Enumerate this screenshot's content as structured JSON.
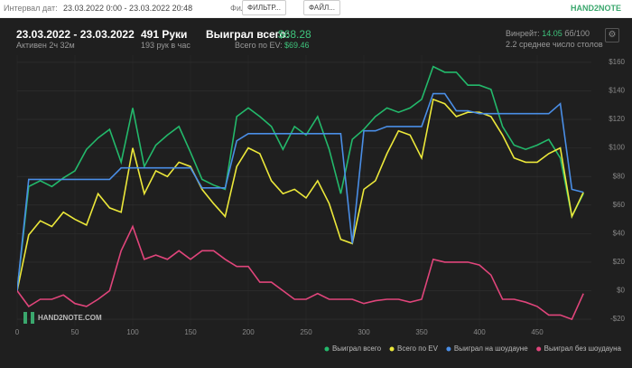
{
  "toolbar": {
    "date_label": "Интервал дат:",
    "date_range": "23.03.2022 0:00 - 23.03.2022 20:48",
    "filters_label": "Фильтры:",
    "filter_button": "ФИЛЬТР...",
    "file_button": "ФАЙЛ...",
    "logo": "HAND2NOTE"
  },
  "stats": {
    "period": "23.03.2022 - 23.03.2022",
    "active": "Активен 2ч 32м",
    "hands": "491 Руки",
    "hands_per_hour": "193 рук в час",
    "won_label": "Выиграл всего:",
    "won_value": "$68.28",
    "ev_label": "Всего по EV:",
    "ev_value": "$69.46",
    "winrate_label": "Винрейт:",
    "winrate_value": "14.05",
    "winrate_unit": "бб/100",
    "tables": "2.2 среднее число столов"
  },
  "watermark": "HAND2NOTE.COM",
  "chart_data": {
    "type": "line",
    "x": [
      0,
      10,
      20,
      30,
      40,
      50,
      60,
      70,
      80,
      90,
      100,
      110,
      120,
      130,
      140,
      150,
      160,
      170,
      180,
      190,
      200,
      210,
      220,
      230,
      240,
      250,
      260,
      270,
      280,
      290,
      300,
      310,
      320,
      330,
      340,
      350,
      360,
      370,
      380,
      390,
      400,
      410,
      420,
      430,
      440,
      450,
      460,
      470,
      480,
      490
    ],
    "xlim": [
      0,
      500
    ],
    "xticks": [
      0,
      50,
      100,
      150,
      200,
      250,
      300,
      350,
      400,
      450
    ],
    "ylim": [
      -25,
      165
    ],
    "yticks": [
      {
        "value": -20,
        "label": "-$20"
      },
      {
        "value": 0,
        "label": "$0"
      },
      {
        "value": 20,
        "label": "$20"
      },
      {
        "value": 40,
        "label": "$40"
      },
      {
        "value": 60,
        "label": "$60"
      },
      {
        "value": 80,
        "label": "$80"
      },
      {
        "value": 100,
        "label": "$100"
      },
      {
        "value": 120,
        "label": "$120"
      },
      {
        "value": 140,
        "label": "$140"
      },
      {
        "value": 160,
        "label": "$160"
      }
    ],
    "grid": true,
    "legend": "bottom-right",
    "series": [
      {
        "name": "Выиграл всего",
        "color": "#23b96b",
        "values": [
          0,
          73,
          77,
          73,
          79,
          84,
          99,
          107,
          113,
          90,
          128,
          87,
          102,
          109,
          115,
          97,
          78,
          74,
          71,
          122,
          128,
          122,
          115,
          99,
          115,
          109,
          122,
          99,
          68,
          106,
          113,
          122,
          128,
          125,
          128,
          134,
          157,
          153,
          153,
          144,
          144,
          141,
          115,
          102,
          99,
          102,
          106,
          93,
          52,
          68
        ]
      },
      {
        "name": "Всего по EV",
        "color": "#ece83a",
        "values": [
          0,
          39,
          49,
          45,
          55,
          50,
          46,
          68,
          58,
          55,
          100,
          68,
          84,
          80,
          90,
          87,
          71,
          61,
          52,
          87,
          100,
          96,
          77,
          68,
          71,
          65,
          77,
          61,
          36,
          33,
          71,
          77,
          96,
          112,
          109,
          93,
          134,
          131,
          122,
          125,
          125,
          122,
          109,
          93,
          90,
          90,
          96,
          100,
          52,
          69
        ]
      },
      {
        "name": "Выиграл на шоудауне",
        "color": "#4a8ee6",
        "values": [
          0,
          78,
          78,
          78,
          78,
          78,
          78,
          78,
          78,
          86,
          86,
          86,
          86,
          86,
          86,
          86,
          72,
          72,
          72,
          105,
          110,
          110,
          110,
          110,
          110,
          110,
          110,
          110,
          110,
          33,
          112,
          112,
          115,
          115,
          115,
          115,
          138,
          138,
          126,
          126,
          124,
          124,
          124,
          124,
          124,
          124,
          124,
          131,
          71,
          69
        ]
      },
      {
        "name": "Выиграл без шоудауна",
        "color": "#e0457b",
        "values": [
          0,
          -11,
          -6,
          -6,
          -3,
          -9,
          -11,
          -6,
          0,
          28,
          45,
          22,
          25,
          22,
          28,
          22,
          28,
          28,
          22,
          17,
          17,
          6,
          6,
          0,
          -6,
          -6,
          -2,
          -6,
          -6,
          -6,
          -9,
          -7,
          -6,
          -6,
          -8,
          -6,
          22,
          20,
          20,
          20,
          18,
          11,
          -6,
          -6,
          -8,
          -11,
          -17,
          -17,
          -20,
          -2
        ]
      }
    ]
  }
}
